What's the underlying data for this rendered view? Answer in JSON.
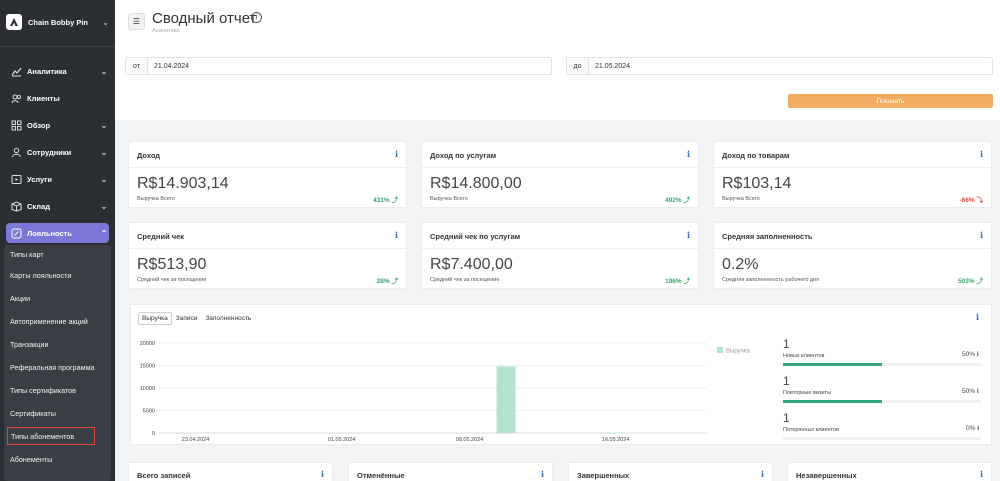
{
  "brand": {
    "name": "Chain Bobby Pin"
  },
  "nav": {
    "items": [
      {
        "label": "Аналитика",
        "icon": "chart-line-icon",
        "has_chevron": true
      },
      {
        "label": "Клиенты",
        "icon": "users-icon",
        "has_chevron": false
      },
      {
        "label": "Обзор",
        "icon": "grid-icon",
        "has_chevron": true
      },
      {
        "label": "Сотрудники",
        "icon": "user-icon",
        "has_chevron": true
      },
      {
        "label": "Услуги",
        "icon": "play-box-icon",
        "has_chevron": true
      },
      {
        "label": "Склад",
        "icon": "box-icon",
        "has_chevron": true
      },
      {
        "label": "Лояльность",
        "icon": "tag-icon",
        "has_chevron": true,
        "active": true
      }
    ],
    "submenu": [
      "Типы карт",
      "Карты лояльности",
      "Акции",
      "Автоприменение акций",
      "Транзакции",
      "Реферальная программа",
      "Типы сертификатов",
      "Сертификаты",
      "Типы абонементов",
      "Абонементы"
    ]
  },
  "header": {
    "title": "Сводный отчет",
    "subtitle": "Аналитика",
    "from_label": "от",
    "from_value": "21.04.2024",
    "to_label": "до",
    "to_value": "21.05.2024",
    "show_button": "Показать"
  },
  "cards": [
    {
      "title": "Доход",
      "value": "R$14.903,14",
      "sub": "Выручка Всего",
      "pct": "431% ⤴",
      "trend": "up"
    },
    {
      "title": "Доход по услугам",
      "value": "R$14.800,00",
      "sub": "Выручка Всего",
      "pct": "492% ⤴",
      "trend": "up"
    },
    {
      "title": "Доход по товарам",
      "value": "R$103,14",
      "sub": "Выручка Всего",
      "pct": "-66% ⤵",
      "trend": "down"
    },
    {
      "title": "Средний чек",
      "value": "R$513,90",
      "sub": "Средний чек за посещение",
      "pct": "28% ⤴",
      "trend": "up"
    },
    {
      "title": "Средний чек по услугам",
      "value": "R$7.400,00",
      "sub": "Средний чек за посещение",
      "pct": "196% ⤴",
      "trend": "up"
    },
    {
      "title": "Средняя заполненность",
      "value": "0.2%",
      "sub": "Средняя заполненность рабочего дня",
      "pct": "503% ⤴",
      "trend": "up"
    }
  ],
  "chart_panel": {
    "tabs": [
      "Выручка",
      "Записи",
      "Заполненность"
    ],
    "active_tab": "Выручка"
  },
  "chart_data": {
    "type": "bar",
    "legend": "Выручка",
    "legend_position": "top-right",
    "y_ticks": [
      "20000",
      "15000",
      "10000",
      "5000",
      "0"
    ],
    "ylim": [
      0,
      20000
    ],
    "x_ticks": [
      "23.04.2024",
      "01.05.2024",
      "08.05.2024",
      "16.05.2024"
    ],
    "series": [
      {
        "name": "Выручка",
        "points": [
          {
            "date": "2024-05-10",
            "value": 14800
          },
          {
            "date": "2024-05-16",
            "value": 103
          }
        ]
      }
    ],
    "color": "#b4e3cf",
    "grid": true
  },
  "stats": [
    {
      "value": "1",
      "label": "Новых клиентов",
      "pct": "50%",
      "fill": 0.5
    },
    {
      "value": "1",
      "label": "Повторные визиты",
      "pct": "50%",
      "fill": 0.5
    },
    {
      "value": "1",
      "label": "Потерянных клиентов",
      "pct": "0%",
      "fill": 0
    }
  ],
  "bottom_cards": [
    "Всего записей",
    "Отменённые",
    "Завершенных",
    "Незавершенных"
  ],
  "info_glyph": "i",
  "colors": {
    "sidebar": "#2b2e33",
    "active_nav": "#7b78d8",
    "accent_orange": "#f0ad61",
    "up": "#37a56a",
    "down": "#e2453a",
    "bar": "#b4e3cf"
  }
}
